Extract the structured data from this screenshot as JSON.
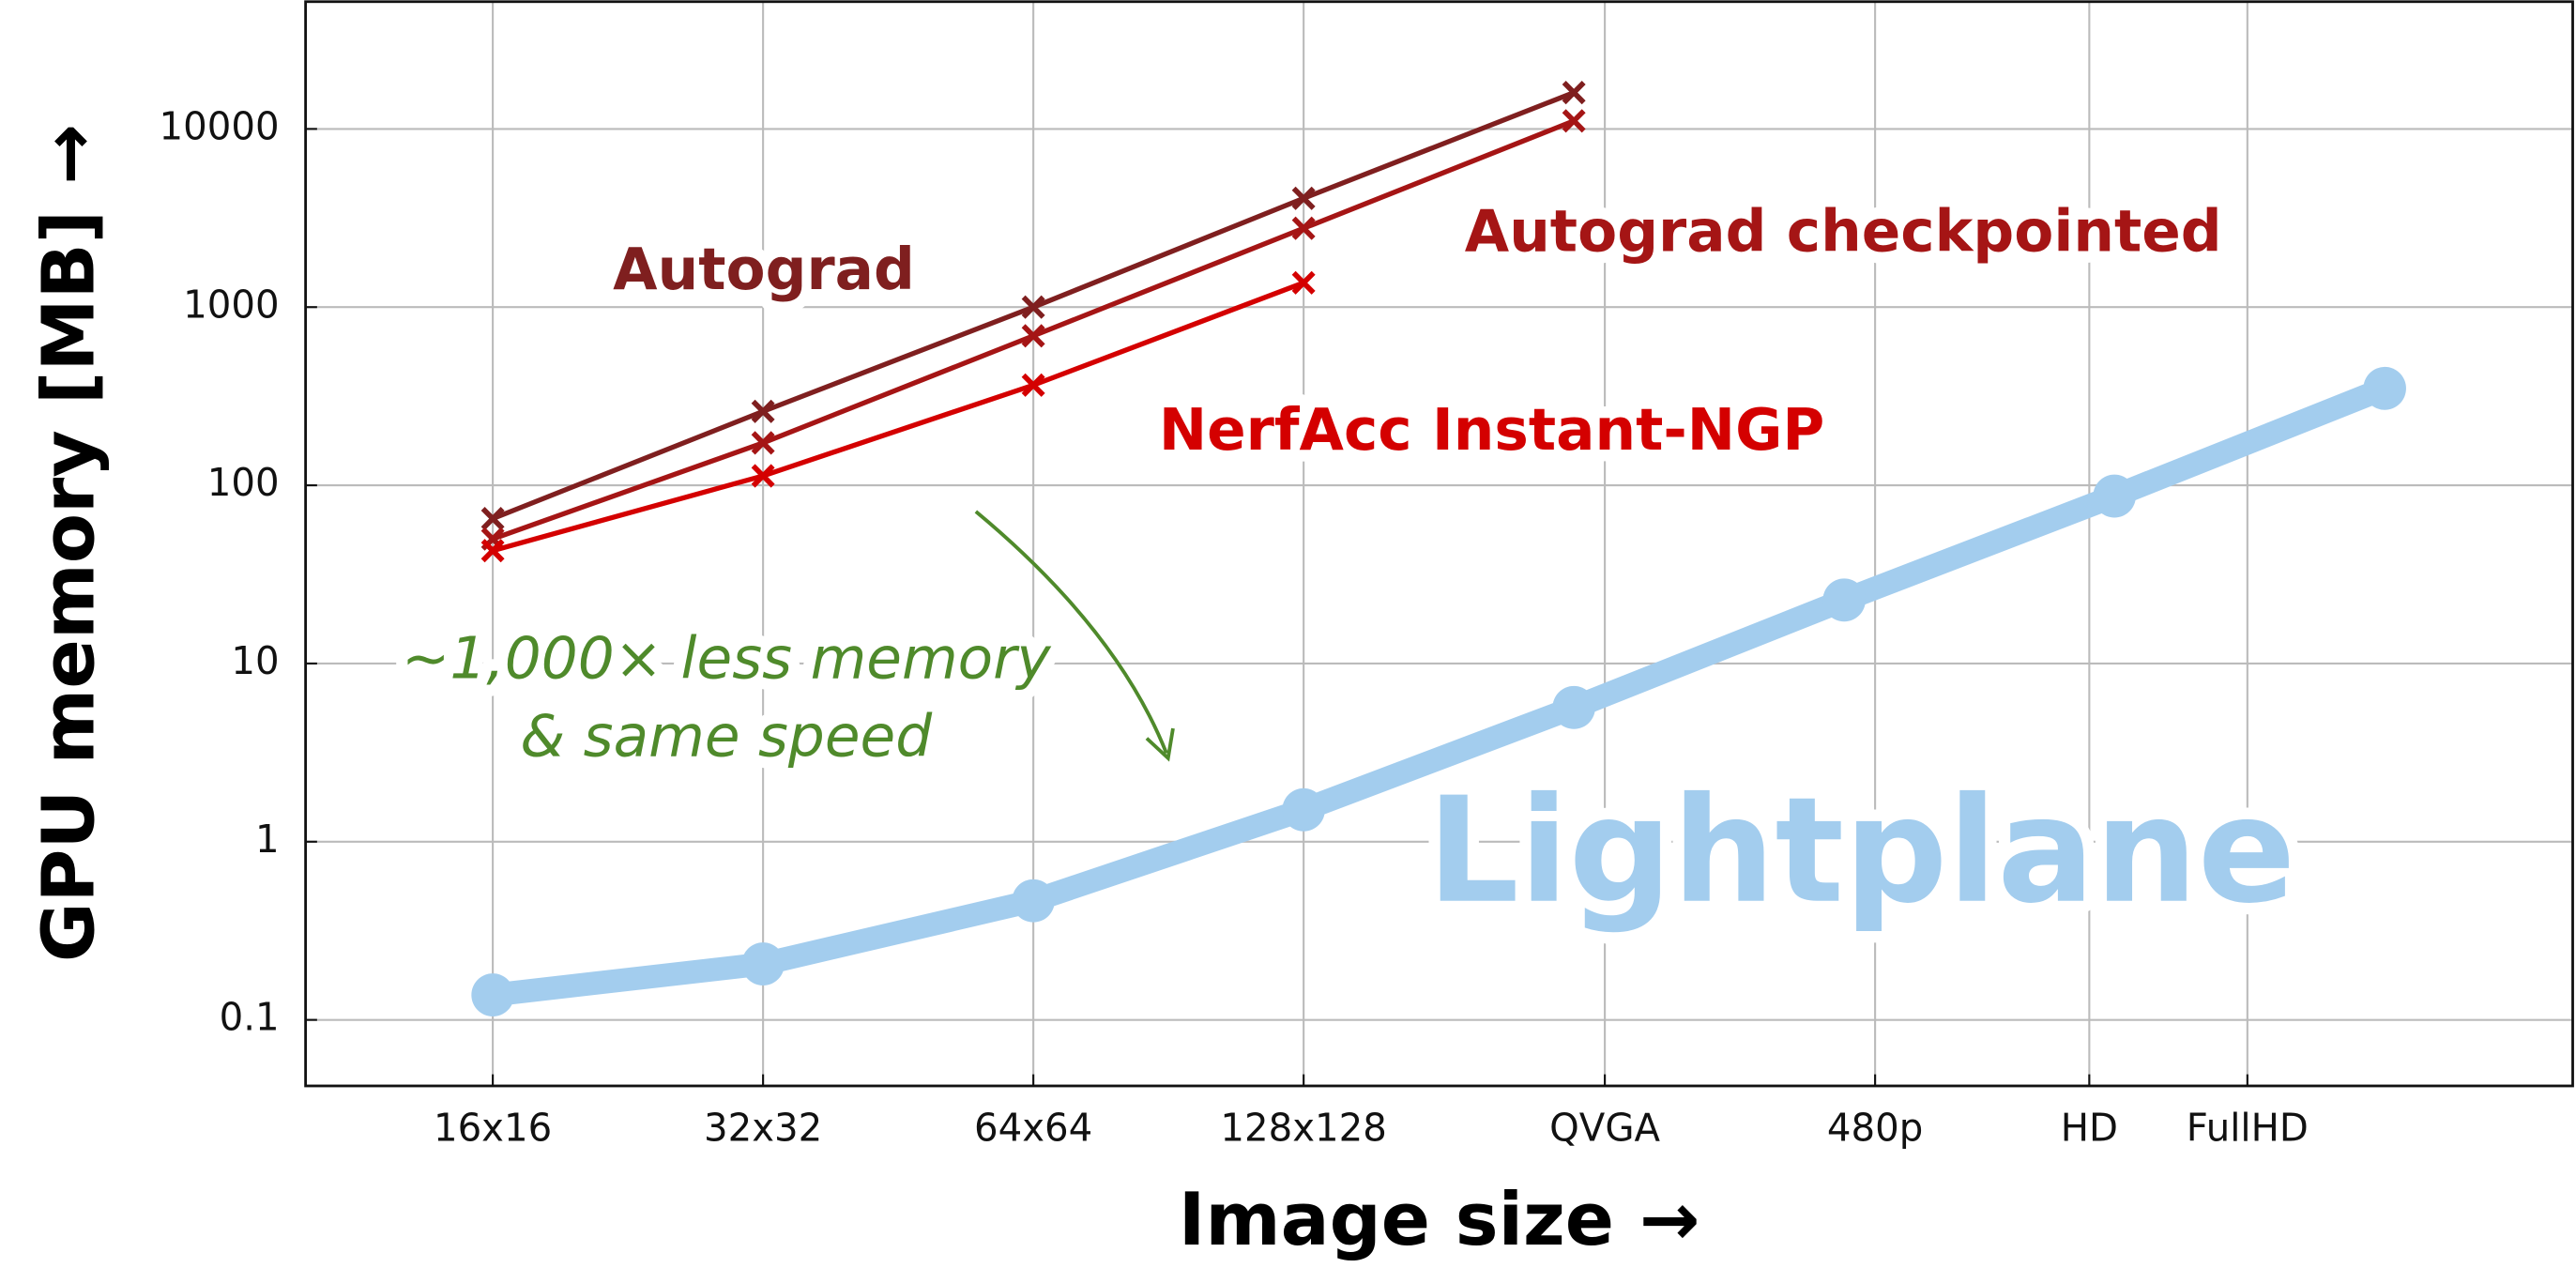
{
  "chart_data": {
    "type": "line",
    "xlabel": "Image size →",
    "ylabel": "GPU memory [MB] →",
    "xscale": "log",
    "yscale": "log",
    "grid": true,
    "xlim": [
      98,
      11000000
    ],
    "ylim": [
      0.0426,
      51800
    ],
    "xticks": [
      {
        "value": 256,
        "label": "16x16"
      },
      {
        "value": 1024,
        "label": "32x32"
      },
      {
        "value": 4096,
        "label": "64x64"
      },
      {
        "value": 16384,
        "label": "128x128"
      },
      {
        "value": 76800,
        "label": "QVGA"
      },
      {
        "value": 307200,
        "label": "480p"
      },
      {
        "value": 921600,
        "label": "HD"
      },
      {
        "value": 2073600,
        "label": "FullHD"
      }
    ],
    "yticks": [
      0.1,
      1,
      10,
      100,
      1000,
      10000
    ],
    "x": [
      256,
      1024,
      4096,
      16384,
      65536,
      262144,
      1048576,
      4194304
    ],
    "series": [
      {
        "name": "Autograd",
        "color": "#7f1f1f",
        "values": [
          65,
          260,
          1000,
          4080,
          16000,
          null,
          null,
          null
        ]
      },
      {
        "name": "Autograd checkpointed",
        "color": "#a51515",
        "values": [
          50,
          173,
          690,
          2770,
          11100,
          null,
          null,
          null
        ]
      },
      {
        "name": "NerfAcc Instant-NGP",
        "color": "#d40000",
        "values": [
          43,
          113,
          365,
          1370,
          null,
          null,
          null,
          null
        ]
      },
      {
        "name": "Lightplane",
        "color": "#a3cdee",
        "values": [
          0.138,
          0.206,
          0.466,
          1.51,
          5.66,
          22.7,
          87,
          350
        ]
      }
    ],
    "annotations": [
      "∼1,000× less memory",
      "& same speed"
    ]
  }
}
